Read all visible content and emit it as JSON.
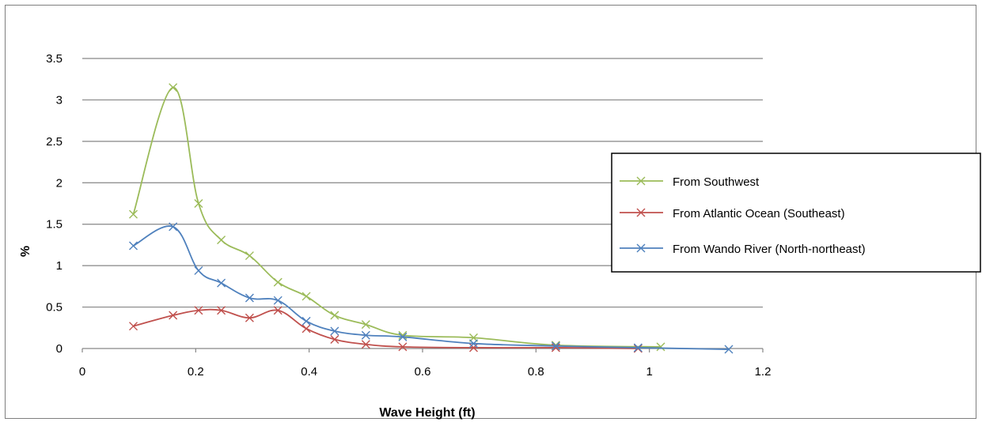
{
  "chart_data": {
    "type": "line",
    "title": "",
    "xlabel": "Wave Height (ft)",
    "ylabel": "%",
    "xlim": [
      0,
      1.2
    ],
    "ylim": [
      0,
      3.5
    ],
    "x_ticks": [
      "0",
      "0.2",
      "0.4",
      "0.6",
      "0.8",
      "1",
      "1.2"
    ],
    "y_ticks": [
      "0",
      "0.5",
      "1",
      "1.5",
      "2",
      "2.5",
      "3",
      "3.5"
    ],
    "grid": "horizontal",
    "legend_position": "right",
    "marker": "x",
    "series": [
      {
        "name": "From Southwest",
        "color": "#9bbb59",
        "x": [
          0.09,
          0.16,
          0.205,
          0.245,
          0.295,
          0.345,
          0.395,
          0.445,
          0.5,
          0.565,
          0.69,
          0.835,
          1.02
        ],
        "y": [
          1.62,
          3.15,
          1.75,
          1.31,
          1.12,
          0.8,
          0.63,
          0.4,
          0.29,
          0.16,
          0.13,
          0.04,
          0.02
        ]
      },
      {
        "name": "From Atlantic Ocean  (Southeast)",
        "color": "#c0504d",
        "x": [
          0.09,
          0.16,
          0.205,
          0.245,
          0.295,
          0.345,
          0.395,
          0.445,
          0.5,
          0.565,
          0.69,
          0.835,
          0.98
        ],
        "y": [
          0.27,
          0.4,
          0.46,
          0.46,
          0.37,
          0.46,
          0.24,
          0.11,
          0.05,
          0.02,
          0.01,
          0.01,
          0.0
        ]
      },
      {
        "name": "From Wando River (North-northeast)",
        "color": "#4f81bd",
        "x": [
          0.09,
          0.16,
          0.205,
          0.245,
          0.295,
          0.345,
          0.395,
          0.445,
          0.5,
          0.565,
          0.69,
          0.835,
          0.98,
          1.14
        ],
        "y": [
          1.24,
          1.47,
          0.94,
          0.79,
          0.61,
          0.58,
          0.33,
          0.21,
          0.16,
          0.14,
          0.06,
          0.03,
          0.01,
          -0.01
        ]
      }
    ]
  }
}
